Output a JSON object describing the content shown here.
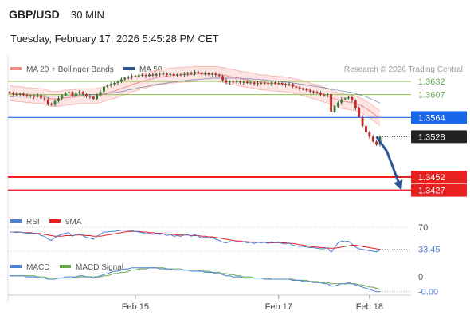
{
  "header": {
    "pair": "GBP/USD",
    "interval": "30 MIN",
    "datetime": "Tuesday, February 17, 2026 5:45:28 PM CET"
  },
  "chart_data": [
    {
      "type": "candlestick",
      "legend": {
        "placement": "top-left",
        "items": [
          {
            "label": "MA 20 + Bollinger Bands",
            "color": "#f28b82"
          },
          {
            "label": "MA 50",
            "color": "#2f5597"
          }
        ]
      },
      "source": "Research © 2026 Trading Central",
      "ylim": [
        1.338,
        1.368
      ],
      "xlim": [
        0,
        106
      ],
      "x_ticks": [
        {
          "label": "Feb 15",
          "x": 36
        },
        {
          "label": "Feb 17",
          "x": 77
        },
        {
          "label": "Feb 18",
          "x": 103
        }
      ],
      "levels": [
        {
          "value": 1.3632,
          "label": "1.3632",
          "kind": "resistance",
          "color": "#8bc34a"
        },
        {
          "value": 1.3607,
          "label": "1.3607",
          "kind": "resistance",
          "color": "#8bc34a"
        },
        {
          "value": 1.3564,
          "label": "1.3564",
          "kind": "pivot",
          "color": "#1a66e8"
        },
        {
          "value": 1.3452,
          "label": "1.3452",
          "kind": "support",
          "color": "#e82020"
        },
        {
          "value": 1.3427,
          "label": "1.3427",
          "kind": "support",
          "color": "#e82020"
        }
      ],
      "last_price": {
        "value": 1.3528,
        "label": "1.3528",
        "color": "#222222"
      },
      "forecast_arrow": {
        "color": "#2f5597",
        "points": [
          [
            105,
            1.3528
          ],
          [
            108,
            1.35
          ],
          [
            112,
            1.343
          ]
        ]
      },
      "closes": [
        1.361,
        1.3608,
        1.3607,
        1.3609,
        1.3606,
        1.3604,
        1.3605,
        1.3603,
        1.3606,
        1.36,
        1.3598,
        1.359,
        1.3588,
        1.3595,
        1.36,
        1.3606,
        1.361,
        1.3612,
        1.3605,
        1.361,
        1.3612,
        1.3608,
        1.3604,
        1.3603,
        1.3599,
        1.3606,
        1.3612,
        1.3622,
        1.3624,
        1.3627,
        1.3629,
        1.3631,
        1.3636,
        1.3639,
        1.364,
        1.3642,
        1.3641,
        1.3643,
        1.3644,
        1.3642,
        1.3645,
        1.3643,
        1.3646,
        1.3645,
        1.3647,
        1.3644,
        1.3646,
        1.3643,
        1.3645,
        1.3644,
        1.3646,
        1.3648,
        1.3646,
        1.365,
        1.3648,
        1.3645,
        1.3647,
        1.3645,
        1.3646,
        1.3644,
        1.3642,
        1.3634,
        1.363,
        1.3632,
        1.363,
        1.3632,
        1.363,
        1.3631,
        1.3629,
        1.363,
        1.3627,
        1.3629,
        1.3628,
        1.3629,
        1.3627,
        1.363,
        1.3628,
        1.3629,
        1.3627,
        1.3625,
        1.3627,
        1.3622,
        1.362,
        1.3618,
        1.3617,
        1.3615,
        1.3613,
        1.3612,
        1.361,
        1.3607,
        1.3606,
        1.3608,
        1.3575,
        1.3585,
        1.3592,
        1.3598,
        1.36,
        1.3602,
        1.3596,
        1.3582,
        1.3565,
        1.3548,
        1.3536,
        1.3528,
        1.3519,
        1.3513,
        1.3528
      ],
      "ma20": [
        1.361,
        1.3609,
        1.3608,
        1.3608,
        1.3607,
        1.3606,
        1.3606,
        1.3605,
        1.3605,
        1.3604,
        1.3603,
        1.3601,
        1.3599,
        1.3599,
        1.3599,
        1.36,
        1.3601,
        1.3602,
        1.3602,
        1.3603,
        1.3604,
        1.3604,
        1.3604,
        1.3604,
        1.3604,
        1.3605,
        1.3606,
        1.3608,
        1.361,
        1.3612,
        1.3614,
        1.3616,
        1.3619,
        1.3621,
        1.3623,
        1.3626,
        1.3628,
        1.363,
        1.3632,
        1.3634,
        1.3636,
        1.3637,
        1.3639,
        1.364,
        1.3641,
        1.3642,
        1.3643,
        1.3643,
        1.3644,
        1.3644,
        1.3645,
        1.3645,
        1.3645,
        1.3646,
        1.3646,
        1.3646,
        1.3646,
        1.3646,
        1.3646,
        1.3646,
        1.3645,
        1.3644,
        1.3643,
        1.3641,
        1.364,
        1.3639,
        1.3637,
        1.3636,
        1.3635,
        1.3634,
        1.3633,
        1.3631,
        1.363,
        1.363,
        1.3629,
        1.3628,
        1.3628,
        1.3627,
        1.3627,
        1.3626,
        1.3625,
        1.3624,
        1.3622,
        1.3621,
        1.3619,
        1.3617,
        1.3615,
        1.3613,
        1.3611,
        1.3609,
        1.3607,
        1.3605,
        1.3601,
        1.3599,
        1.3597,
        1.3595,
        1.3594,
        1.3593,
        1.3592,
        1.359,
        1.3588,
        1.3585,
        1.3581,
        1.3577,
        1.3572,
        1.3567,
        1.3563
      ],
      "ma50": [
        1.3603,
        1.3603,
        1.3604,
        1.3604,
        1.3604,
        1.3604,
        1.3605,
        1.3605,
        1.3605,
        1.3605,
        1.3605,
        1.3604,
        1.3604,
        1.3604,
        1.3604,
        1.3604,
        1.3605,
        1.3605,
        1.3605,
        1.3606,
        1.3606,
        1.3606,
        1.3606,
        1.3607,
        1.3607,
        1.3607,
        1.3608,
        1.3608,
        1.3609,
        1.361,
        1.3611,
        1.3612,
        1.3613,
        1.3614,
        1.3616,
        1.3617,
        1.3618,
        1.362,
        1.3621,
        1.3622,
        1.3624,
        1.3625,
        1.3626,
        1.3627,
        1.3628,
        1.3629,
        1.363,
        1.3631,
        1.3632,
        1.3633,
        1.3633,
        1.3634,
        1.3635,
        1.3635,
        1.3636,
        1.3636,
        1.3637,
        1.3637,
        1.3638,
        1.3638,
        1.3638,
        1.3638,
        1.3638,
        1.3638,
        1.3638,
        1.3638,
        1.3638,
        1.3637,
        1.3637,
        1.3637,
        1.3636,
        1.3636,
        1.3635,
        1.3635,
        1.3634,
        1.3633,
        1.3633,
        1.3632,
        1.3631,
        1.3631,
        1.363,
        1.3629,
        1.3628,
        1.3627,
        1.3626,
        1.3625,
        1.3624,
        1.3623,
        1.3622,
        1.3621,
        1.362,
        1.3619,
        1.3617,
        1.3616,
        1.3615,
        1.3614,
        1.3613,
        1.3612,
        1.3611,
        1.3609,
        1.3607,
        1.3605,
        1.3603,
        1.36,
        1.3597,
        1.3594,
        1.3591
      ],
      "bb_width": 0.0014
    },
    {
      "type": "line",
      "name": "rsi-panel",
      "legend": {
        "placement": "top-left",
        "items": [
          {
            "label": "RSI",
            "color": "#4a7fd4"
          },
          {
            "label": "9MA",
            "color": "#e82020"
          }
        ]
      },
      "ylim": [
        10,
        90
      ],
      "levels": [
        {
          "value": 70,
          "label": "70"
        },
        {
          "value": 30,
          "label": ""
        }
      ],
      "value_label": {
        "value": 33.45,
        "label": "33.45",
        "color": "#4a7fd4"
      },
      "rsi": [
        62,
        62,
        61,
        62,
        61,
        60,
        60,
        59,
        60,
        56,
        55,
        50,
        48,
        53,
        56,
        58,
        60,
        61,
        55,
        58,
        59,
        56,
        53,
        52,
        50,
        55,
        58,
        62,
        62,
        63,
        63,
        64,
        65,
        65,
        65,
        64,
        63,
        62,
        61,
        59,
        60,
        58,
        60,
        58,
        59,
        56,
        58,
        55,
        56,
        55,
        57,
        58,
        55,
        58,
        55,
        52,
        54,
        52,
        53,
        50,
        48,
        45,
        44,
        46,
        45,
        46,
        45,
        46,
        44,
        45,
        43,
        45,
        44,
        45,
        43,
        46,
        44,
        45,
        43,
        42,
        44,
        40,
        39,
        38,
        38,
        37,
        36,
        36,
        35,
        34,
        34,
        36,
        28,
        36,
        44,
        47,
        46,
        47,
        42,
        37,
        34,
        33,
        32,
        31,
        30,
        29,
        33
      ],
      "ma9": [
        62,
        62,
        62,
        62,
        61,
        61,
        61,
        60,
        60,
        59,
        58,
        57,
        56,
        55,
        55,
        55,
        56,
        56,
        56,
        57,
        57,
        57,
        56,
        56,
        55,
        55,
        55,
        56,
        57,
        58,
        59,
        60,
        61,
        62,
        63,
        63,
        63,
        63,
        62,
        62,
        61,
        61,
        60,
        60,
        59,
        59,
        58,
        58,
        57,
        57,
        57,
        57,
        56,
        56,
        56,
        55,
        55,
        54,
        54,
        53,
        52,
        51,
        50,
        49,
        48,
        47,
        47,
        46,
        46,
        45,
        45,
        45,
        45,
        45,
        44,
        44,
        44,
        44,
        44,
        44,
        43,
        43,
        42,
        41,
        40,
        39,
        38,
        37,
        37,
        36,
        36,
        35,
        35,
        35,
        36,
        37,
        38,
        39,
        40,
        40,
        39,
        38,
        37,
        36,
        35,
        34,
        33
      ]
    },
    {
      "type": "line",
      "name": "macd-panel",
      "legend": {
        "placement": "top-left",
        "items": [
          {
            "label": "MACD",
            "color": "#4a7fd4"
          },
          {
            "label": "MACD Signal",
            "color": "#6aa84f"
          }
        ]
      },
      "ylim": [
        -0.0016,
        0.0012
      ],
      "levels": [
        {
          "value": 0,
          "label": "0"
        }
      ],
      "value_label": {
        "value": -0.0,
        "label": "-0.00",
        "color": "#4a7fd4"
      },
      "macd": [
        0.0001,
        0.0001,
        0.0001,
        0.0001,
        0.0001,
        0.0,
        0.0,
        0.0,
        0.0,
        -0.0001,
        -0.0001,
        -0.0002,
        -0.0002,
        -0.0002,
        -0.0001,
        -0.0001,
        0.0,
        0.0,
        0.0,
        0.0,
        0.0001,
        0.0001,
        0.0,
        0.0,
        -0.0001,
        0.0,
        0.0001,
        0.0002,
        0.0003,
        0.0004,
        0.0005,
        0.0005,
        0.0006,
        0.0007,
        0.0007,
        0.0008,
        0.0008,
        0.0008,
        0.0008,
        0.0008,
        0.0008,
        0.0008,
        0.0008,
        0.0007,
        0.0007,
        0.0007,
        0.0007,
        0.0006,
        0.0006,
        0.0006,
        0.0006,
        0.0006,
        0.0005,
        0.0005,
        0.0005,
        0.0005,
        0.0004,
        0.0004,
        0.0004,
        0.0003,
        0.0003,
        0.0002,
        0.0001,
        0.0001,
        0.0,
        0.0,
        0.0,
        -0.0001,
        -0.0001,
        -0.0001,
        -0.0001,
        -0.0001,
        -0.0001,
        -0.0002,
        -0.0002,
        -0.0002,
        -0.0002,
        -0.0002,
        -0.0002,
        -0.0002,
        -0.0002,
        -0.0003,
        -0.0003,
        -0.0003,
        -0.0004,
        -0.0004,
        -0.0004,
        -0.0005,
        -0.0005,
        -0.0005,
        -0.0006,
        -0.0006,
        -0.0008,
        -0.0008,
        -0.0007,
        -0.0006,
        -0.0006,
        -0.0005,
        -0.0006,
        -0.0007,
        -0.0008,
        -0.0009,
        -0.001,
        -0.0011,
        -0.0012,
        -0.0013,
        -0.0013
      ],
      "signal": [
        0.0001,
        0.0001,
        0.0001,
        0.0001,
        0.0001,
        0.0001,
        0.0001,
        0.0001,
        0.0,
        0.0,
        0.0,
        -0.0001,
        -0.0001,
        -0.0001,
        -0.0001,
        -0.0001,
        -0.0001,
        -0.0001,
        -0.0001,
        0.0,
        0.0,
        0.0,
        0.0,
        0.0,
        0.0,
        0.0,
        0.0,
        0.0001,
        0.0001,
        0.0002,
        0.0003,
        0.0003,
        0.0004,
        0.0004,
        0.0005,
        0.0006,
        0.0006,
        0.0007,
        0.0007,
        0.0007,
        0.0008,
        0.0008,
        0.0008,
        0.0008,
        0.0008,
        0.0007,
        0.0007,
        0.0007,
        0.0007,
        0.0007,
        0.0006,
        0.0006,
        0.0006,
        0.0006,
        0.0006,
        0.0005,
        0.0005,
        0.0005,
        0.0004,
        0.0004,
        0.0004,
        0.0003,
        0.0003,
        0.0002,
        0.0002,
        0.0001,
        0.0001,
        0.0,
        0.0,
        0.0,
        -0.0001,
        -0.0001,
        -0.0001,
        -0.0001,
        -0.0001,
        -0.0002,
        -0.0002,
        -0.0002,
        -0.0002,
        -0.0002,
        -0.0002,
        -0.0002,
        -0.0003,
        -0.0003,
        -0.0003,
        -0.0003,
        -0.0004,
        -0.0004,
        -0.0004,
        -0.0005,
        -0.0005,
        -0.0005,
        -0.0006,
        -0.0006,
        -0.0006,
        -0.0006,
        -0.0006,
        -0.0006,
        -0.0006,
        -0.0006,
        -0.0007,
        -0.0007,
        -0.0008,
        -0.0009,
        -0.0009,
        -0.001,
        -0.0011
      ]
    }
  ]
}
